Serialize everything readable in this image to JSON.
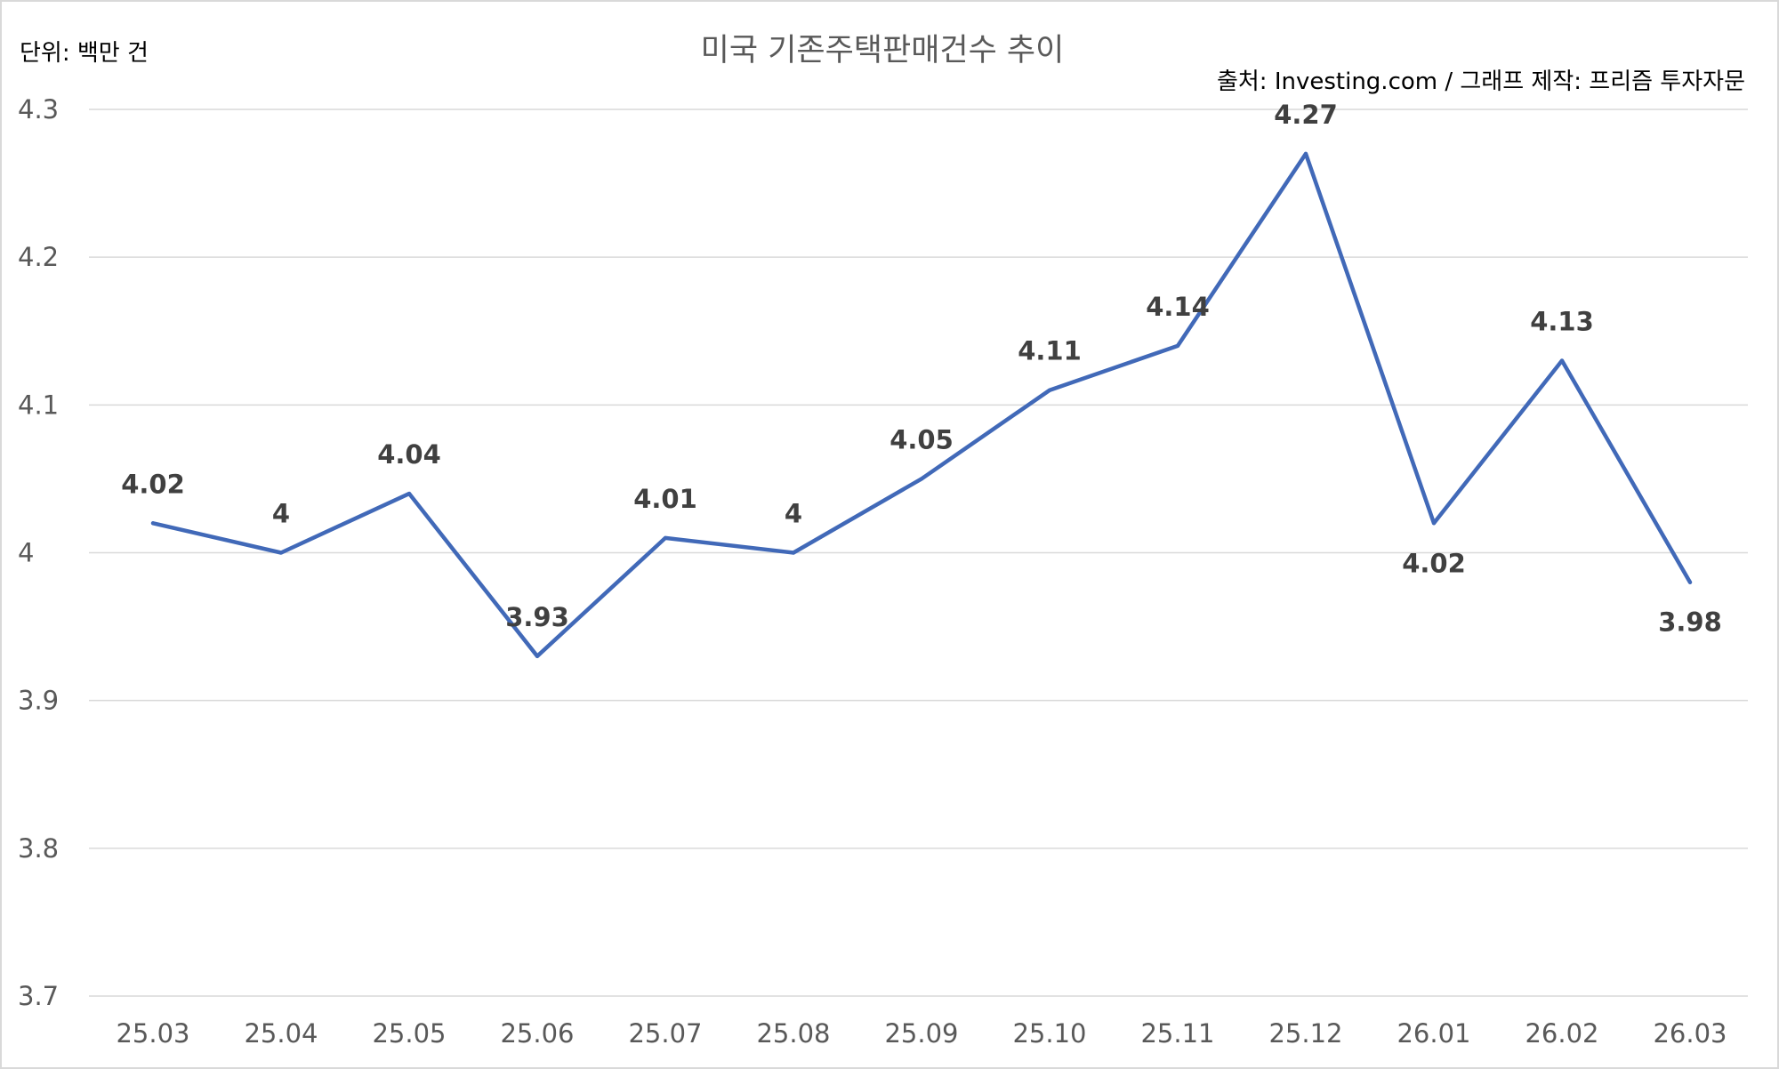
{
  "chart_data": {
    "type": "line",
    "title": "미국 기존주택판매건수 추이",
    "unit_note": "단위: 백만 건",
    "source_note": "출처: Investing.com / 그래프 제작: 프리즘 투자자문",
    "categories": [
      "25.03",
      "25.04",
      "25.05",
      "25.06",
      "25.07",
      "25.08",
      "25.09",
      "25.10",
      "25.11",
      "25.12",
      "26.01",
      "26.02",
      "26.03"
    ],
    "series": [
      {
        "values": [
          4.02,
          4.0,
          4.04,
          3.93,
          4.01,
          4.0,
          4.05,
          4.11,
          4.14,
          4.27,
          4.02,
          4.13,
          3.98
        ],
        "data_labels": [
          "4.02",
          "4",
          "4.04",
          "3.93",
          "4.01",
          "4",
          "4.05",
          "4.11",
          "4.14",
          "4.27",
          "4.02",
          "4.13",
          "3.98"
        ],
        "label_position": [
          "above",
          "above",
          "above",
          "above",
          "above",
          "above",
          "above",
          "above",
          "above",
          "above",
          "below",
          "above",
          "below"
        ],
        "color": "#4169b8"
      }
    ],
    "yticks": [
      "3.7",
      "3.8",
      "3.9",
      "4",
      "4.1",
      "4.2",
      "4.3"
    ],
    "ylim": [
      3.7,
      4.3
    ],
    "grid": true,
    "legend": "none",
    "colors": {
      "grid": "#d9d9d9",
      "axis_text": "#595959",
      "label_text": "#404040",
      "note_text": "#000000"
    }
  }
}
